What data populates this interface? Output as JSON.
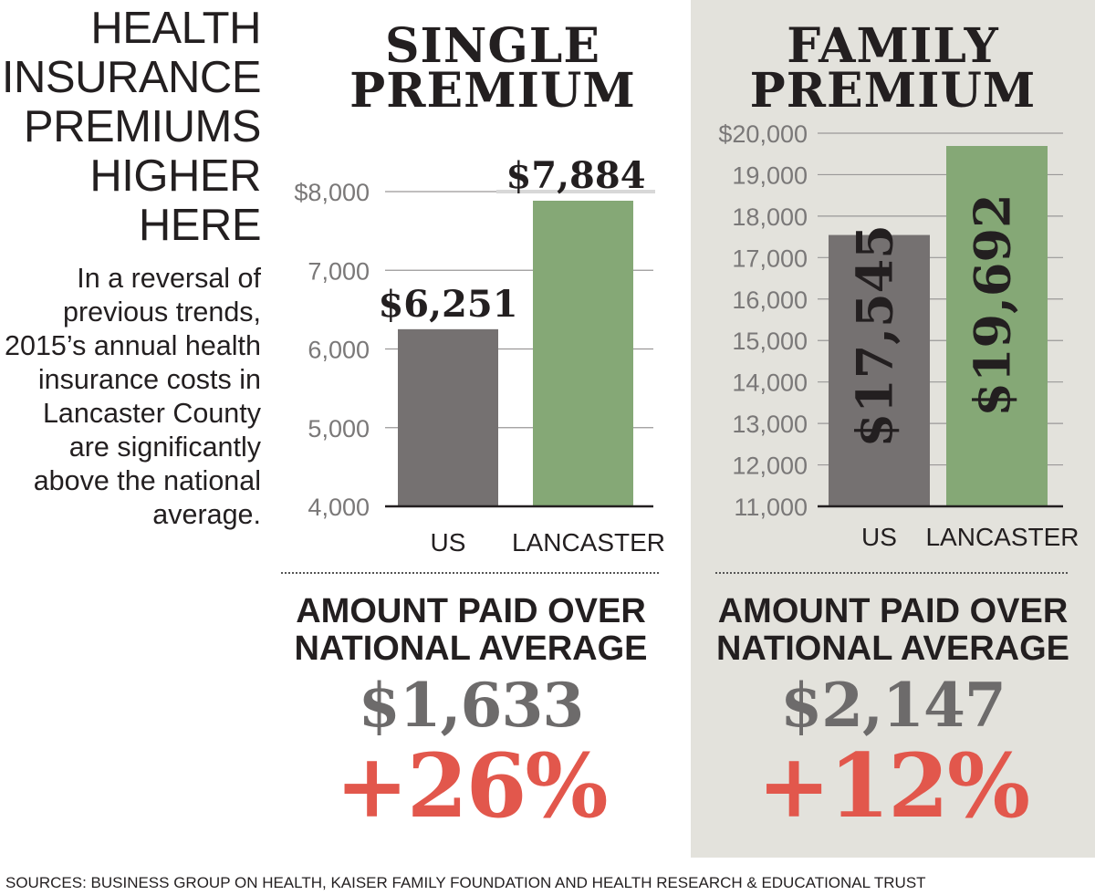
{
  "headline": [
    "HEALTH",
    "INSURANCE",
    "PREMIUMS",
    "HIGHER",
    "HERE"
  ],
  "intro": "In a reversal of previous trends, 2015’s annual health insurance costs in Lancaster County are significantly above the national average.",
  "colors": {
    "us": "#757171",
    "lancaster": "#85a876",
    "pct": "#e2574c",
    "family_panel": "#e3e2dc"
  },
  "chart_data": [
    {
      "type": "bar",
      "title": [
        "SINGLE",
        "PREMIUM"
      ],
      "categories": [
        "US",
        "LANCASTER"
      ],
      "values": [
        6251,
        7884
      ],
      "value_labels": [
        "$6,251",
        "$7,884"
      ],
      "ylim": [
        4000,
        8000
      ],
      "ticks": [
        4000,
        5000,
        6000,
        7000,
        8000
      ],
      "tick_labels": [
        "4,000",
        "5,000",
        "6,000",
        "7,000",
        "$8,000"
      ],
      "grid": true,
      "label_position": "above",
      "summary": {
        "label": [
          "AMOUNT PAID OVER",
          "NATIONAL AVERAGE"
        ],
        "amount": "$1,633",
        "percent": "+26%"
      }
    },
    {
      "type": "bar",
      "title": [
        "FAMILY",
        "PREMIUM"
      ],
      "categories": [
        "US",
        "LANCASTER"
      ],
      "values": [
        17545,
        19692
      ],
      "value_labels": [
        "$17,545",
        "$19,692"
      ],
      "ylim": [
        11000,
        20000
      ],
      "ticks": [
        11000,
        12000,
        13000,
        14000,
        15000,
        16000,
        17000,
        18000,
        19000,
        20000
      ],
      "tick_labels": [
        "11,000",
        "12,000",
        "13,000",
        "14,000",
        "15,000",
        "16,000",
        "17,000",
        "18,000",
        "19,000",
        "$20,000"
      ],
      "grid": true,
      "label_position": "inside-vertical",
      "summary": {
        "label": [
          "AMOUNT PAID OVER",
          "NATIONAL AVERAGE"
        ],
        "amount": "$2,147",
        "percent": "+12%"
      }
    }
  ],
  "sources": "SOURCES: BUSINESS GROUP ON HEALTH, KAISER FAMILY FOUNDATION AND HEALTH RESEARCH & EDUCATIONAL TRUST"
}
